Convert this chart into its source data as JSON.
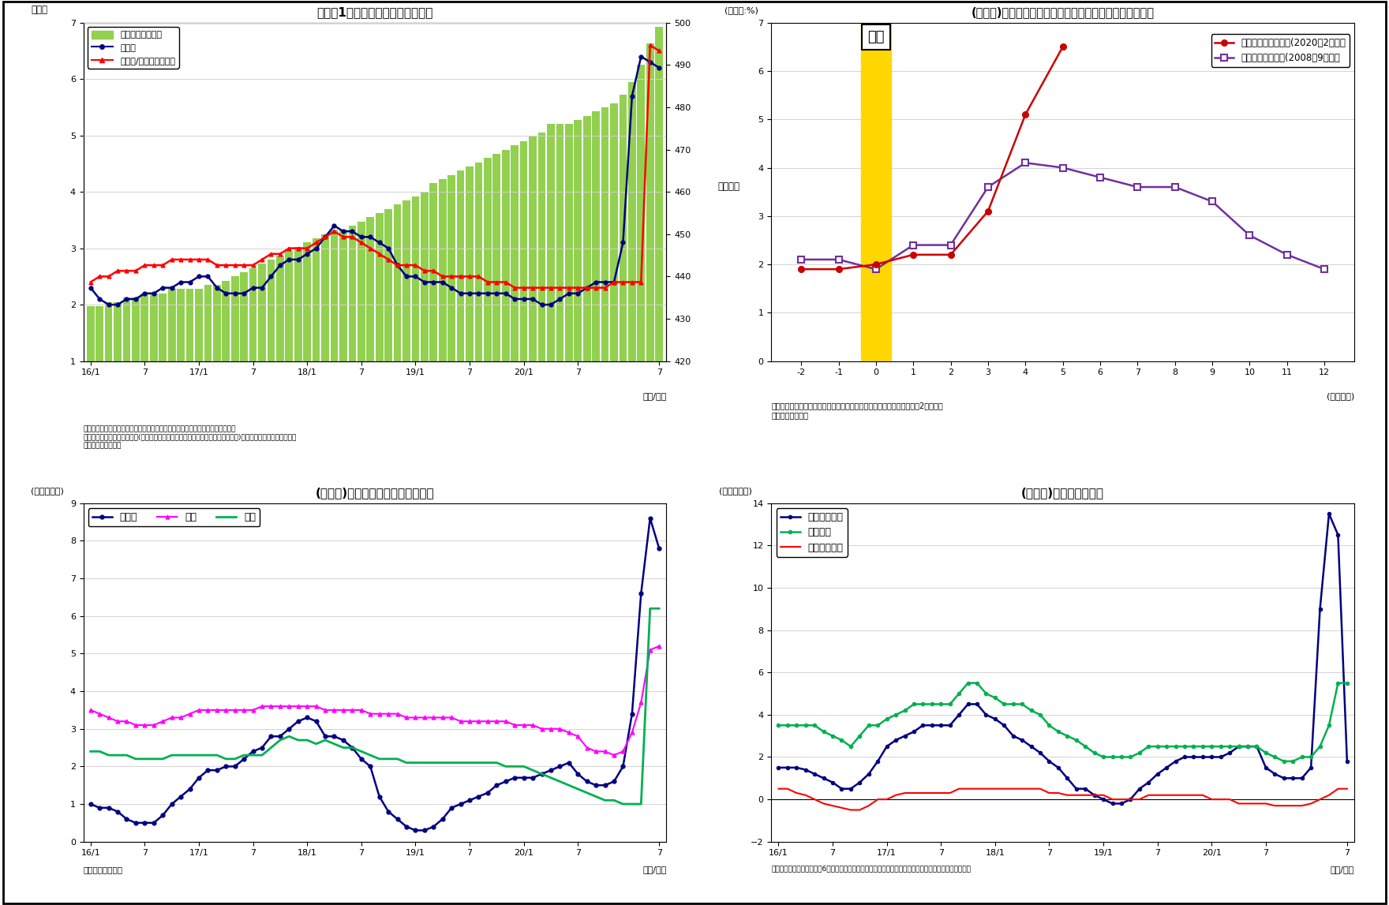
{
  "fig1": {
    "title": "（図表1）　銀行貸出残高の増減率",
    "bar_color": "#92d050",
    "line1_color": "#000080",
    "line2_color": "#ff0000",
    "ylim_left": [
      1.0,
      7.0
    ],
    "ylim_right": [
      420,
      500
    ],
    "yticks_left": [
      1.0,
      2.0,
      3.0,
      4.0,
      5.0,
      6.0,
      7.0
    ],
    "yticks_right": [
      420,
      430,
      440,
      450,
      460,
      470,
      480,
      490,
      500
    ],
    "legend": [
      "貸出残高（右軸）",
      "前年比",
      "前年比/特殊要因調整後"
    ],
    "xtick_positions": [
      0,
      6,
      12,
      18,
      24,
      30,
      36,
      42,
      48,
      54,
      63
    ],
    "xtick_labels": [
      "16/1",
      "7",
      "17/1",
      "7",
      "18/1",
      "7",
      "19/1",
      "7",
      "20/1",
      "7",
      "7"
    ],
    "bar_values": [
      433,
      433,
      434,
      434,
      435,
      435,
      436,
      436,
      436,
      437,
      437,
      437,
      437,
      438,
      438,
      439,
      440,
      441,
      442,
      443,
      444,
      445,
      446,
      447,
      448,
      449,
      450,
      451,
      451,
      452,
      453,
      454,
      455,
      456,
      457,
      458,
      459,
      460,
      462,
      463,
      464,
      465,
      466,
      467,
      468,
      469,
      470,
      471,
      472,
      473,
      474,
      476,
      476,
      476,
      477,
      478,
      479,
      480,
      481,
      483,
      486,
      490,
      495,
      499
    ],
    "line1_values": [
      2.3,
      2.1,
      2.0,
      2.0,
      2.1,
      2.1,
      2.2,
      2.2,
      2.3,
      2.3,
      2.4,
      2.4,
      2.5,
      2.5,
      2.3,
      2.2,
      2.2,
      2.2,
      2.3,
      2.3,
      2.5,
      2.7,
      2.8,
      2.8,
      2.9,
      3.0,
      3.2,
      3.4,
      3.3,
      3.3,
      3.2,
      3.2,
      3.1,
      3.0,
      2.7,
      2.5,
      2.5,
      2.4,
      2.4,
      2.4,
      2.3,
      2.2,
      2.2,
      2.2,
      2.2,
      2.2,
      2.2,
      2.1,
      2.1,
      2.1,
      2.0,
      2.0,
      2.1,
      2.2,
      2.2,
      2.3,
      2.4,
      2.4,
      2.4,
      3.1,
      5.7,
      6.4,
      6.3,
      6.2
    ],
    "line2_values": [
      2.4,
      2.5,
      2.5,
      2.6,
      2.6,
      2.6,
      2.7,
      2.7,
      2.7,
      2.8,
      2.8,
      2.8,
      2.8,
      2.8,
      2.7,
      2.7,
      2.7,
      2.7,
      2.7,
      2.8,
      2.9,
      2.9,
      3.0,
      3.0,
      3.0,
      3.1,
      3.2,
      3.3,
      3.2,
      3.2,
      3.1,
      3.0,
      2.9,
      2.8,
      2.7,
      2.7,
      2.7,
      2.6,
      2.6,
      2.5,
      2.5,
      2.5,
      2.5,
      2.5,
      2.4,
      2.4,
      2.4,
      2.3,
      2.3,
      2.3,
      2.3,
      2.3,
      2.3,
      2.3,
      2.3,
      2.3,
      2.3,
      2.3,
      2.4,
      2.4,
      2.4,
      2.4,
      6.6,
      6.5
    ],
    "note1": "（注）特殊要因調整後は、為替変動・債権償却・流動化等の影響を考慮したもの",
    "note2": "　特殊要因調整後の前年比＝(今月の調整後貸出残高－前年同月の調整前貸出残高)／前年同月の調整前貸出残高",
    "note3": "　（資料）日本銀行"
  },
  "fig2": {
    "title": "(図表２)リーマンショック・コロナショック後の銀行貸出",
    "ylabel": "(前年比:%)",
    "xlabel": "(経過月数)",
    "ylim": [
      0,
      7
    ],
    "yticks": [
      0,
      1,
      2,
      3,
      4,
      5,
      6,
      7
    ],
    "xticks": [
      -2,
      -1,
      0,
      1,
      2,
      3,
      4,
      5,
      6,
      7,
      8,
      9,
      10,
      11,
      12
    ],
    "line1_color": "#cc0000",
    "line2_color": "#7030a0",
    "legend1": "新型コロナショック(2020年2月）後",
    "legend2": "リーマンショック(2008年9月）後",
    "corona_x": [
      -2,
      -1,
      0,
      1,
      2,
      3,
      4,
      5
    ],
    "corona_y": [
      1.9,
      1.9,
      2.0,
      2.2,
      2.2,
      3.1,
      5.1,
      6.5
    ],
    "lehman_x": [
      -2,
      -1,
      0,
      1,
      2,
      3,
      4,
      5,
      6,
      7,
      8,
      9,
      10,
      11,
      12
    ],
    "lehman_y": [
      2.1,
      2.1,
      1.9,
      2.4,
      2.4,
      3.6,
      4.1,
      4.0,
      3.8,
      3.6,
      3.6,
      3.3,
      2.6,
      2.2,
      1.9
    ],
    "hassei_text": "発生",
    "note1": "（注）新型コロナショックは、世界的に感染が拡大し、株価が急落した2月とした",
    "note2": "（資料）日本銀行"
  },
  "fig3": {
    "title": "(図表３)　業態別の貸出残高増減率",
    "ylabel": "(前年比、％)",
    "ylim": [
      0,
      9
    ],
    "yticks": [
      0,
      1,
      2,
      3,
      4,
      5,
      6,
      7,
      8,
      9
    ],
    "line1_color": "#000080",
    "line2_color": "#ff00ff",
    "line3_color": "#00b050",
    "legend": [
      "都銀等",
      "地銀",
      "信金"
    ],
    "xtick_positions": [
      0,
      6,
      12,
      18,
      24,
      30,
      36,
      42,
      48,
      54,
      63
    ],
    "xtick_labels": [
      "16/1",
      "7",
      "17/1",
      "7",
      "18/1",
      "7",
      "19/1",
      "7",
      "20/1",
      "7",
      "7"
    ],
    "line1_values": [
      1.0,
      0.9,
      0.9,
      0.8,
      0.6,
      0.5,
      0.5,
      0.5,
      0.7,
      1.0,
      1.2,
      1.4,
      1.7,
      1.9,
      1.9,
      2.0,
      2.0,
      2.2,
      2.4,
      2.5,
      2.8,
      2.8,
      3.0,
      3.2,
      3.3,
      3.2,
      2.8,
      2.8,
      2.7,
      2.5,
      2.2,
      2.0,
      1.2,
      0.8,
      0.6,
      0.4,
      0.3,
      0.3,
      0.4,
      0.6,
      0.9,
      1.0,
      1.1,
      1.2,
      1.3,
      1.5,
      1.6,
      1.7,
      1.7,
      1.7,
      1.8,
      1.9,
      2.0,
      2.1,
      1.8,
      1.6,
      1.5,
      1.5,
      1.6,
      2.0,
      3.4,
      6.6,
      8.6,
      7.8
    ],
    "line2_values": [
      3.5,
      3.4,
      3.3,
      3.2,
      3.2,
      3.1,
      3.1,
      3.1,
      3.2,
      3.3,
      3.3,
      3.4,
      3.5,
      3.5,
      3.5,
      3.5,
      3.5,
      3.5,
      3.5,
      3.6,
      3.6,
      3.6,
      3.6,
      3.6,
      3.6,
      3.6,
      3.5,
      3.5,
      3.5,
      3.5,
      3.5,
      3.4,
      3.4,
      3.4,
      3.4,
      3.3,
      3.3,
      3.3,
      3.3,
      3.3,
      3.3,
      3.2,
      3.2,
      3.2,
      3.2,
      3.2,
      3.2,
      3.1,
      3.1,
      3.1,
      3.0,
      3.0,
      3.0,
      2.9,
      2.8,
      2.5,
      2.4,
      2.4,
      2.3,
      2.4,
      2.9,
      3.7,
      5.1,
      5.2
    ],
    "line3_values": [
      2.4,
      2.4,
      2.3,
      2.3,
      2.3,
      2.2,
      2.2,
      2.2,
      2.2,
      2.3,
      2.3,
      2.3,
      2.3,
      2.3,
      2.3,
      2.2,
      2.2,
      2.3,
      2.3,
      2.3,
      2.5,
      2.7,
      2.8,
      2.7,
      2.7,
      2.6,
      2.7,
      2.6,
      2.5,
      2.5,
      2.4,
      2.3,
      2.2,
      2.2,
      2.2,
      2.1,
      2.1,
      2.1,
      2.1,
      2.1,
      2.1,
      2.1,
      2.1,
      2.1,
      2.1,
      2.1,
      2.0,
      2.0,
      2.0,
      1.9,
      1.8,
      1.7,
      1.6,
      1.5,
      1.4,
      1.3,
      1.2,
      1.1,
      1.1,
      1.0,
      1.0,
      1.0,
      6.2,
      6.2
    ],
    "note": "（資料）日本銀行"
  },
  "fig4": {
    "title": "(図表４)貸出先別貸出金",
    "ylabel": "(前年比、％)",
    "ylim": [
      -2,
      14
    ],
    "yticks": [
      -2,
      0,
      2,
      4,
      6,
      8,
      10,
      12,
      14
    ],
    "line1_color": "#000080",
    "line2_color": "#00b050",
    "line3_color": "#ff0000",
    "legend": [
      "大・中堅企業",
      "中小企業",
      "地方公共団体"
    ],
    "xtick_positions": [
      0,
      6,
      12,
      18,
      24,
      30,
      36,
      42,
      48,
      54,
      63
    ],
    "xtick_labels": [
      "16/1",
      "7",
      "17/1",
      "7",
      "18/1",
      "7",
      "19/1",
      "7",
      "20/1",
      "7",
      "7"
    ],
    "line1_values": [
      1.5,
      1.5,
      1.5,
      1.4,
      1.2,
      1.0,
      0.8,
      0.5,
      0.5,
      0.8,
      1.2,
      1.8,
      2.5,
      2.8,
      3.0,
      3.2,
      3.5,
      3.5,
      3.5,
      3.5,
      4.0,
      4.5,
      4.5,
      4.0,
      3.8,
      3.5,
      3.0,
      2.8,
      2.5,
      2.2,
      1.8,
      1.5,
      1.0,
      0.5,
      0.5,
      0.2,
      0.0,
      -0.2,
      -0.2,
      0.0,
      0.5,
      0.8,
      1.2,
      1.5,
      1.8,
      2.0,
      2.0,
      2.0,
      2.0,
      2.0,
      2.2,
      2.5,
      2.5,
      2.5,
      1.5,
      1.2,
      1.0,
      1.0,
      1.0,
      1.5,
      9.0,
      13.5,
      12.5,
      1.8
    ],
    "line2_values": [
      3.5,
      3.5,
      3.5,
      3.5,
      3.5,
      3.2,
      3.0,
      2.8,
      2.5,
      3.0,
      3.5,
      3.5,
      3.8,
      4.0,
      4.2,
      4.5,
      4.5,
      4.5,
      4.5,
      4.5,
      5.0,
      5.5,
      5.5,
      5.0,
      4.8,
      4.5,
      4.5,
      4.5,
      4.2,
      4.0,
      3.5,
      3.2,
      3.0,
      2.8,
      2.5,
      2.2,
      2.0,
      2.0,
      2.0,
      2.0,
      2.2,
      2.5,
      2.5,
      2.5,
      2.5,
      2.5,
      2.5,
      2.5,
      2.5,
      2.5,
      2.5,
      2.5,
      2.5,
      2.5,
      2.2,
      2.0,
      1.8,
      1.8,
      2.0,
      2.0,
      2.5,
      3.5,
      5.5,
      5.5
    ],
    "line3_values": [
      0.5,
      0.5,
      0.3,
      0.2,
      0.0,
      -0.2,
      -0.3,
      -0.4,
      -0.5,
      -0.5,
      -0.3,
      0.0,
      0.0,
      0.2,
      0.3,
      0.3,
      0.3,
      0.3,
      0.3,
      0.3,
      0.5,
      0.5,
      0.5,
      0.5,
      0.5,
      0.5,
      0.5,
      0.5,
      0.5,
      0.5,
      0.3,
      0.3,
      0.2,
      0.2,
      0.2,
      0.2,
      0.2,
      0.0,
      0.0,
      0.0,
      0.0,
      0.2,
      0.2,
      0.2,
      0.2,
      0.2,
      0.2,
      0.2,
      0.0,
      0.0,
      0.0,
      -0.2,
      -0.2,
      -0.2,
      -0.2,
      -0.3,
      -0.3,
      -0.3,
      -0.3,
      -0.2,
      0.0,
      0.2,
      0.5,
      0.5
    ],
    "note": "（資料）日本銀行　（注）6月分まで（末残ベース）、大・中堅企業は「法人」－「中小企業」にて算出"
  }
}
